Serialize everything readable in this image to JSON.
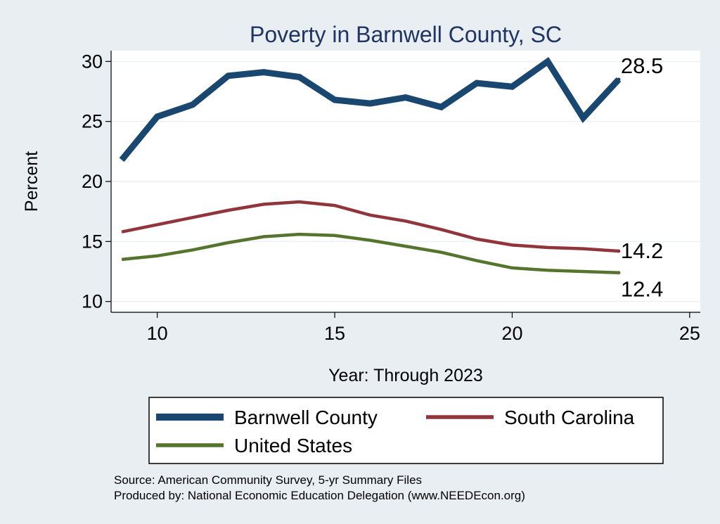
{
  "chart_data": {
    "type": "line",
    "title": "Poverty in Barnwell County, SC",
    "xlabel": "Year: Through 2023",
    "ylabel": "Percent",
    "xlim": [
      8.7,
      25.3
    ],
    "ylim": [
      9.1,
      30.9
    ],
    "xticks": [
      "10",
      "15",
      "20",
      "25"
    ],
    "yticks": [
      "10",
      "15",
      "20",
      "25",
      "30"
    ],
    "grid": true,
    "legend_position": "bottom",
    "series": [
      {
        "name": "Barnwell County",
        "color": "#1a476f",
        "end_label": "28.5",
        "x": [
          9,
          10,
          11,
          12,
          13,
          14,
          15,
          16,
          17,
          18,
          19,
          20,
          21,
          22,
          23
        ],
        "values": [
          21.8,
          25.4,
          26.4,
          28.8,
          29.1,
          28.7,
          26.8,
          26.5,
          27.0,
          26.2,
          28.2,
          27.9,
          30.0,
          25.3,
          28.5
        ]
      },
      {
        "name": "South Carolina",
        "color": "#90353b",
        "end_label": "14.2",
        "x": [
          9,
          10,
          11,
          12,
          13,
          14,
          15,
          16,
          17,
          18,
          19,
          20,
          21,
          22,
          23
        ],
        "values": [
          15.8,
          16.4,
          17.0,
          17.6,
          18.1,
          18.3,
          18.0,
          17.2,
          16.7,
          16.0,
          15.2,
          14.7,
          14.5,
          14.4,
          14.2
        ]
      },
      {
        "name": "United States",
        "color": "#55752f",
        "end_label": "12.4",
        "x": [
          9,
          10,
          11,
          12,
          13,
          14,
          15,
          16,
          17,
          18,
          19,
          20,
          21,
          22,
          23
        ],
        "values": [
          13.5,
          13.8,
          14.3,
          14.9,
          15.4,
          15.6,
          15.5,
          15.1,
          14.6,
          14.1,
          13.4,
          12.8,
          12.6,
          12.5,
          12.4
        ]
      }
    ]
  },
  "source": {
    "line1": "Source: American Community Survey, 5-yr Summary Files",
    "line2": "Produced by: National Economic Education Delegation (www.NEEDEcon.org)"
  }
}
